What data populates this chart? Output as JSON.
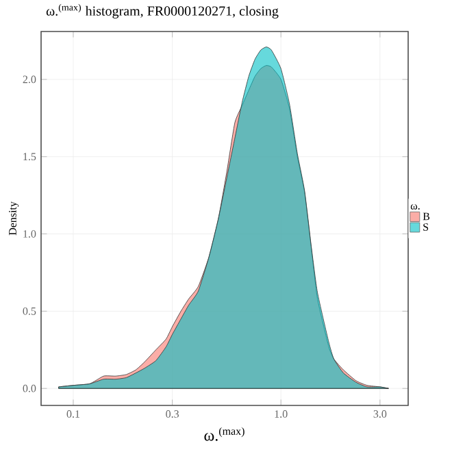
{
  "chart_data": {
    "type": "area",
    "title": "ω.$^{(max)}$ histogram, FR0000120271, closing",
    "xlabel": "ω.$^{(max)}$",
    "ylabel": "Density",
    "legend_title": "ω.",
    "log": "x",
    "x": [
      0.085,
      0.1,
      0.12,
      0.14,
      0.16,
      0.18,
      0.2,
      0.22,
      0.25,
      0.28,
      0.3,
      0.33,
      0.36,
      0.4,
      0.45,
      0.5,
      0.55,
      0.6,
      0.65,
      0.7,
      0.75,
      0.8,
      0.85,
      0.9,
      1.0,
      1.1,
      1.2,
      1.3,
      1.4,
      1.5,
      1.7,
      1.8,
      2.0,
      2.3,
      2.6,
      3.0,
      3.3
    ],
    "series": [
      {
        "name": "B",
        "color": "#F8766D",
        "values": [
          0.01,
          0.02,
          0.03,
          0.08,
          0.08,
          0.09,
          0.12,
          0.17,
          0.25,
          0.32,
          0.4,
          0.5,
          0.58,
          0.66,
          0.85,
          1.1,
          1.41,
          1.72,
          1.83,
          1.93,
          2.02,
          2.07,
          2.09,
          2.08,
          2.0,
          1.81,
          1.5,
          1.27,
          0.91,
          0.58,
          0.27,
          0.19,
          0.12,
          0.05,
          0.02,
          0.01,
          0.0
        ]
      },
      {
        "name": "S",
        "color": "#00BFC4",
        "values": [
          0.01,
          0.02,
          0.03,
          0.06,
          0.06,
          0.07,
          0.1,
          0.13,
          0.18,
          0.27,
          0.35,
          0.45,
          0.54,
          0.63,
          0.85,
          1.1,
          1.37,
          1.62,
          1.85,
          2.02,
          2.13,
          2.19,
          2.21,
          2.19,
          2.07,
          1.84,
          1.52,
          1.28,
          0.92,
          0.62,
          0.3,
          0.19,
          0.1,
          0.04,
          0.01,
          0.01,
          0.0
        ]
      }
    ],
    "xlim": [
      0.07,
      4.1
    ],
    "ylim": [
      -0.11,
      2.31
    ],
    "xticks": [
      0.1,
      0.3,
      {
        "value": 1,
        "label": "1.0"
      },
      {
        "value": 3,
        "label": "3.0"
      }
    ],
    "yticks": [
      {
        "value": 0,
        "label": "0.0"
      },
      0.5,
      {
        "value": 1,
        "label": "1.0"
      },
      1.5,
      {
        "value": 2,
        "label": "2.0"
      }
    ],
    "grid": true,
    "legend": "right"
  }
}
